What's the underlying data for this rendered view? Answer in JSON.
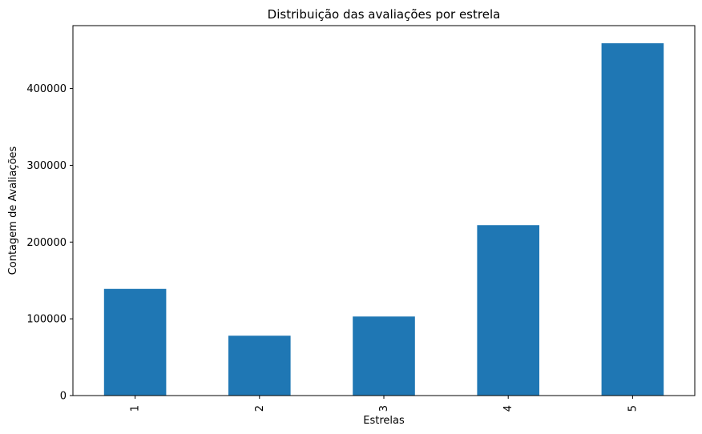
{
  "chart_data": {
    "type": "bar",
    "title": "Distribuição das avaliações por estrela",
    "xlabel": "Estrelas",
    "ylabel": "Contagem de Avaliações",
    "categories": [
      "1",
      "2",
      "3",
      "4",
      "5"
    ],
    "values": [
      139000,
      78000,
      103000,
      222000,
      459000
    ],
    "yticks": [
      0,
      100000,
      200000,
      300000,
      400000
    ],
    "ylim": [
      0,
      482000
    ],
    "bar_color": "#1f77b4",
    "grid": false,
    "legend": "none"
  }
}
